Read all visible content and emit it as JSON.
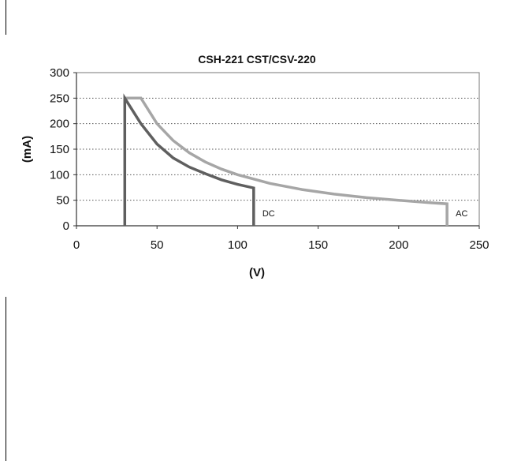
{
  "chart_data": {
    "type": "line",
    "title": "CSH-221 CST/CSV-220",
    "xlabel": "(V)",
    "ylabel": "(mA)",
    "xlim": [
      0,
      250
    ],
    "ylim": [
      0,
      300
    ],
    "x_ticks": [
      "0",
      "50",
      "100",
      "150",
      "200",
      "250"
    ],
    "y_ticks": [
      "0",
      "50",
      "100",
      "150",
      "200",
      "250",
      "300"
    ],
    "grid": "horizontal dotted",
    "legend": "none",
    "series": [
      {
        "name": "DC",
        "color": "#5f5f5f",
        "points": [
          [
            30,
            0
          ],
          [
            30,
            250
          ],
          [
            40,
            200
          ],
          [
            50,
            160
          ],
          [
            60,
            133
          ],
          [
            70,
            115
          ],
          [
            80,
            102
          ],
          [
            90,
            90
          ],
          [
            100,
            81
          ],
          [
            110,
            74
          ],
          [
            110,
            0
          ]
        ]
      },
      {
        "name": "AC",
        "color": "#a6a6a6",
        "points": [
          [
            30,
            250
          ],
          [
            40,
            250
          ],
          [
            50,
            200
          ],
          [
            60,
            167
          ],
          [
            70,
            143
          ],
          [
            80,
            125
          ],
          [
            90,
            111
          ],
          [
            100,
            100
          ],
          [
            120,
            83
          ],
          [
            140,
            71
          ],
          [
            160,
            62
          ],
          [
            180,
            55
          ],
          [
            200,
            50
          ],
          [
            220,
            45
          ],
          [
            230,
            43
          ],
          [
            230,
            0
          ]
        ]
      }
    ]
  }
}
